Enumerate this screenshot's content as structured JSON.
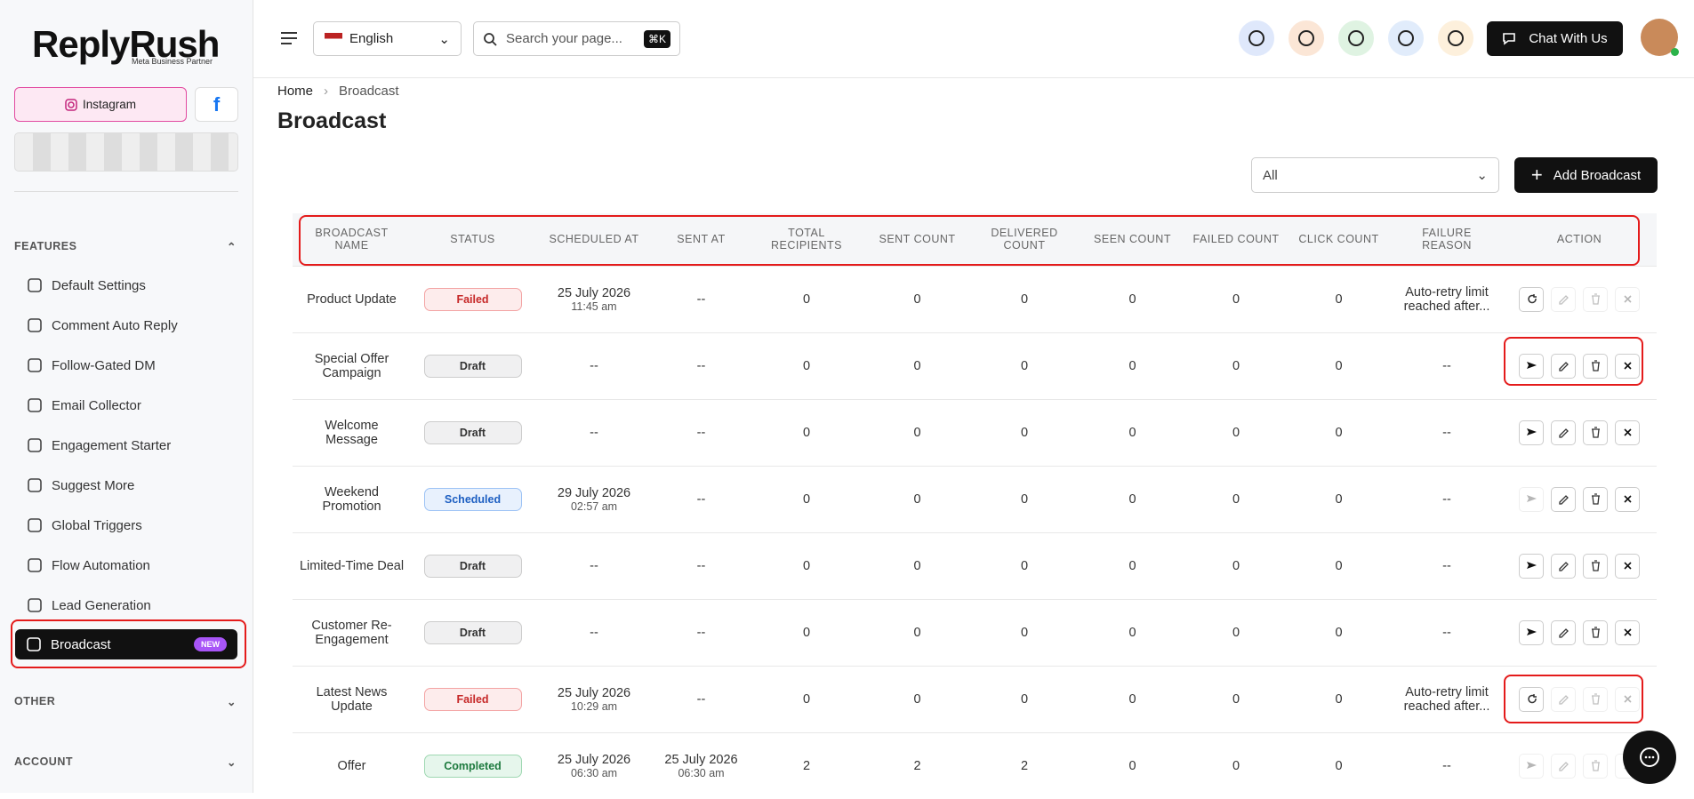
{
  "brand": {
    "name": "ReplyRush",
    "tagline": "Meta Business Partner"
  },
  "header": {
    "language": "English",
    "search_placeholder": "Search your page...",
    "shortcut": "⌘K",
    "chat_button": "Chat With Us"
  },
  "sidebar": {
    "tab": "Instagram",
    "features_title": "FEATURES",
    "features": [
      "Default Settings",
      "Comment Auto Reply",
      "Follow-Gated DM",
      "Email Collector",
      "Engagement Starter",
      "Suggest More",
      "Global Triggers",
      "Flow Automation",
      "Lead Generation",
      "Broadcast"
    ],
    "badge": "NEW",
    "other": "OTHER",
    "account": "ACCOUNT"
  },
  "breadcrumb": [
    "Home",
    "Broadcast"
  ],
  "page_title": "Broadcast",
  "filter": "All",
  "add_button": "Add Broadcast",
  "table": {
    "columns": [
      "BROADCAST NAME",
      "STATUS",
      "SCHEDULED AT",
      "SENT AT",
      "TOTAL RECIPIENTS",
      "SENT COUNT",
      "DELIVERED COUNT",
      "SEEN COUNT",
      "FAILED COUNT",
      "CLICK COUNT",
      "FAILURE REASON",
      "ACTION"
    ],
    "rows": [
      [
        "Product Update",
        "Failed",
        [
          "25 July 2026",
          "11:45 am"
        ],
        "--",
        0,
        0,
        0,
        0,
        0,
        0,
        "Auto-retry limit reached after..."
      ],
      [
        "Special Offer Campaign",
        "Draft",
        "--",
        "--",
        0,
        0,
        0,
        0,
        0,
        0,
        "--"
      ],
      [
        "Welcome Message",
        "Draft",
        "--",
        "--",
        0,
        0,
        0,
        0,
        0,
        0,
        "--"
      ],
      [
        "Weekend Promotion",
        "Scheduled",
        [
          "29 July 2026",
          "02:57 am"
        ],
        "--",
        0,
        0,
        0,
        0,
        0,
        0,
        "--"
      ],
      [
        "Limited-Time Deal",
        "Draft",
        "--",
        "--",
        0,
        0,
        0,
        0,
        0,
        0,
        "--"
      ],
      [
        "Customer Re-Engagement",
        "Draft",
        "--",
        "--",
        0,
        0,
        0,
        0,
        0,
        0,
        "--"
      ],
      [
        "Latest News Update",
        "Failed",
        [
          "25 July 2026",
          "10:29 am"
        ],
        "--",
        0,
        0,
        0,
        0,
        0,
        0,
        "Auto-retry limit reached after..."
      ],
      [
        "Offer",
        "Completed",
        [
          "25 July 2026",
          "06:30 am"
        ],
        [
          "25 July 2026",
          "06:30 am"
        ],
        2,
        2,
        2,
        0,
        0,
        0,
        "--"
      ]
    ]
  }
}
